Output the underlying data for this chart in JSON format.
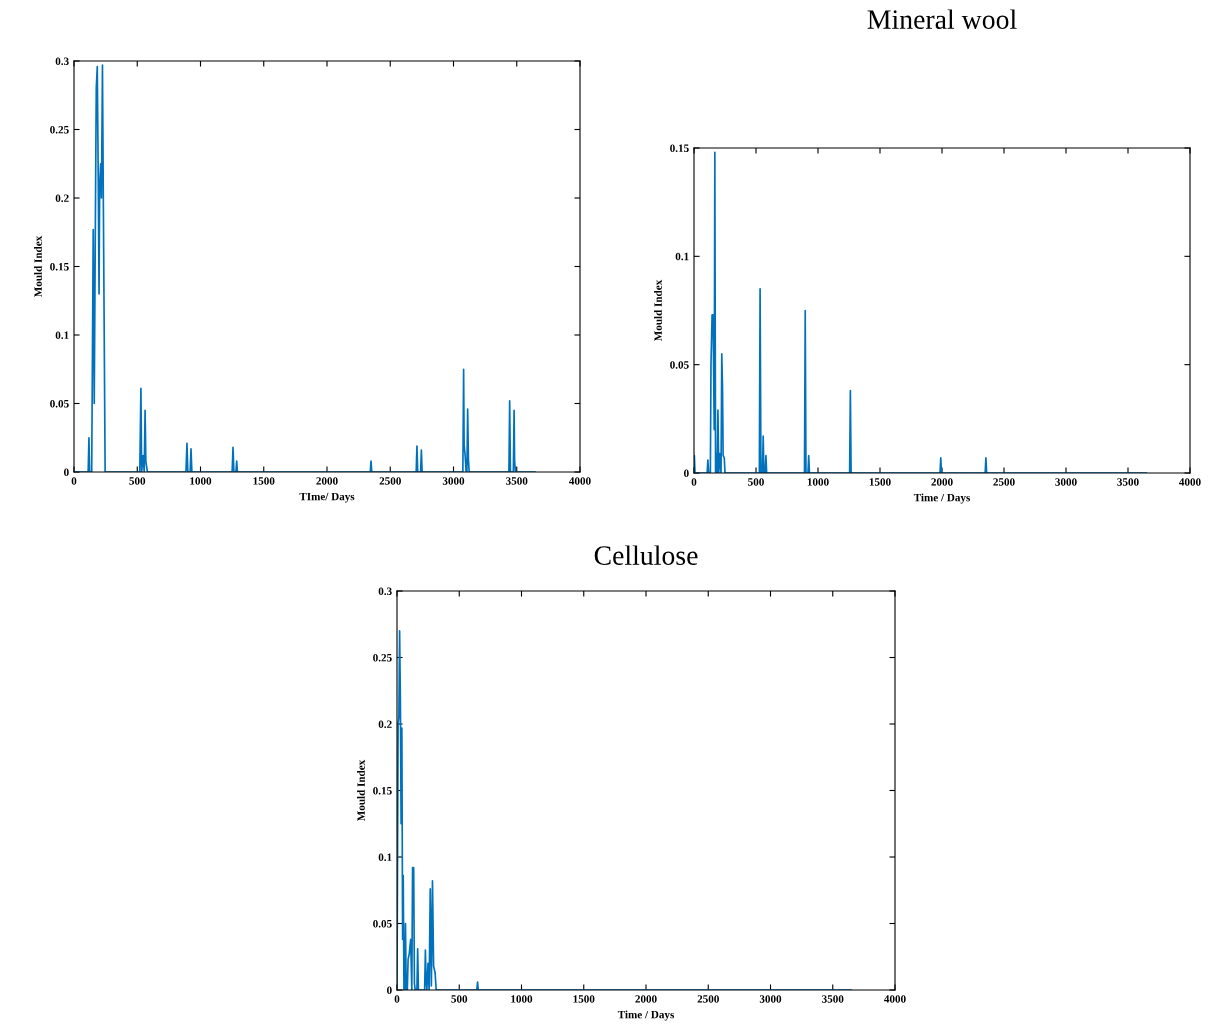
{
  "chart_data": [
    {
      "type": "line",
      "xlabel": "TIme/ Days",
      "ylabel": "Mould Index",
      "xlim": [
        0,
        4000
      ],
      "ylim": [
        0,
        0.3
      ],
      "xticks": [
        0,
        500,
        1000,
        1500,
        2000,
        2500,
        3000,
        3500,
        4000
      ],
      "yticks": [
        0,
        0.05,
        0.1,
        0.15,
        0.2,
        0.25,
        0.3
      ],
      "grid": false,
      "legend": false,
      "series": [
        {
          "color": "#0072bd",
          "x": [
            0,
            112,
            118,
            124,
            140,
            152,
            160,
            171,
            176,
            184,
            192,
            198,
            203,
            211,
            217,
            225,
            246,
            520,
            529,
            535,
            546,
            555,
            562,
            568,
            580,
            885,
            893,
            900,
            918,
            925,
            932,
            1250,
            1257,
            1264,
            1280,
            1286,
            1292,
            2342,
            2348,
            2354,
            2705,
            2711,
            2717,
            2740,
            2746,
            2752,
            3074,
            3080,
            3084,
            3092,
            3100,
            3106,
            3112,
            3118,
            3124,
            3438,
            3444,
            3450,
            3473,
            3479,
            3483,
            3490,
            3644
          ],
          "values": [
            0,
            0,
            0.025,
            0,
            0,
            0.177,
            0.05,
            0.21,
            0.28,
            0.296,
            0.21,
            0.13,
            0.21,
            0.225,
            0.2,
            0.297,
            0,
            0,
            0.061,
            0,
            0.012,
            0,
            0.045,
            0.008,
            0,
            0,
            0.021,
            0,
            0,
            0.017,
            0,
            0,
            0.018,
            0,
            0,
            0.008,
            0,
            0,
            0.008,
            0,
            0,
            0.019,
            0,
            0,
            0.016,
            0,
            0,
            0.075,
            0.02,
            0.012,
            0,
            0,
            0.046,
            0.009,
            0,
            0,
            0.052,
            0,
            0,
            0.045,
            0.008,
            0,
            0
          ]
        }
      ]
    },
    {
      "type": "line",
      "title": "Mineral wool",
      "xlabel": "Time / Days",
      "ylabel": "Mould Index",
      "xlim": [
        0,
        4000
      ],
      "ylim": [
        0,
        0.15
      ],
      "xticks": [
        0,
        500,
        1000,
        1500,
        2000,
        2500,
        3000,
        3500,
        4000
      ],
      "yticks": [
        0,
        0.05,
        0.1,
        0.15
      ],
      "grid": false,
      "legend": false,
      "series": [
        {
          "color": "#0072bd",
          "x": [
            0,
            3,
            8,
            106,
            112,
            118,
            132,
            137,
            146,
            154,
            163,
            168,
            174,
            179,
            186,
            193,
            200,
            207,
            218,
            224,
            230,
            235,
            244,
            250,
            527,
            533,
            540,
            552,
            558,
            564,
            574,
            580,
            586,
            891,
            897,
            903,
            919,
            925,
            931,
            1255,
            1261,
            1267,
            1984,
            1990,
            1996,
            2348,
            2354,
            2360,
            3649
          ],
          "values": [
            0,
            0.008,
            0,
            0,
            0.006,
            0,
            0,
            0.05,
            0.073,
            0.073,
            0.02,
            0.148,
            0,
            0.009,
            0,
            0.029,
            0,
            0.009,
            0,
            0.055,
            0.039,
            0.008,
            0.007,
            0,
            0,
            0.085,
            0,
            0,
            0.017,
            0,
            0,
            0.008,
            0,
            0,
            0.075,
            0,
            0,
            0.008,
            0,
            0,
            0.038,
            0,
            0,
            0.007,
            0,
            0,
            0.007,
            0,
            0
          ]
        }
      ]
    },
    {
      "type": "line",
      "title": "Cellulose",
      "xlabel": "Time / Days",
      "ylabel": "Mould Index",
      "xlim": [
        0,
        4000
      ],
      "ylim": [
        0,
        0.3
      ],
      "xticks": [
        0,
        500,
        1000,
        1500,
        2000,
        2500,
        3000,
        3500,
        4000
      ],
      "yticks": [
        0,
        0.05,
        0.1,
        0.15,
        0.2,
        0.25,
        0.3
      ],
      "grid": false,
      "legend": false,
      "series": [
        {
          "color": "#0072bd",
          "x": [
            0,
            9,
            15,
            21,
            27,
            33,
            39,
            45,
            50,
            56,
            62,
            68,
            74,
            83,
            89,
            98,
            110,
            119,
            125,
            134,
            140,
            146,
            160,
            166,
            172,
            222,
            228,
            234,
            240,
            249,
            258,
            267,
            276,
            285,
            294,
            306,
            315,
            641,
            647,
            653,
            3649
          ],
          "values": [
            0,
            0.2,
            0.205,
            0.27,
            0.22,
            0.125,
            0.197,
            0.038,
            0.086,
            0,
            0,
            0.05,
            0,
            0,
            0.023,
            0.027,
            0.038,
            0,
            0.092,
            0.092,
            0.005,
            0,
            0,
            0.031,
            0,
            0,
            0.03,
            0.006,
            0,
            0.02,
            0.0,
            0.076,
            0.003,
            0.082,
            0.018,
            0.013,
            0,
            0,
            0.006,
            0,
            0
          ]
        }
      ]
    }
  ]
}
